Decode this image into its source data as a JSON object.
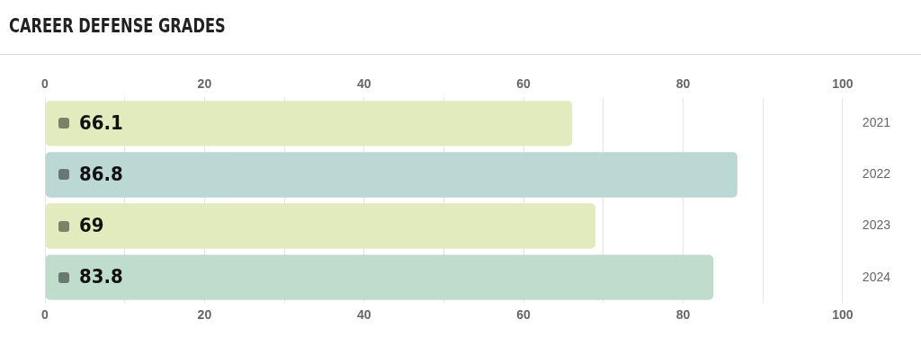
{
  "chart_data": {
    "type": "bar",
    "title": "CAREER DEFENSE GRADES",
    "orientation": "horizontal",
    "categories": [
      "2021",
      "2022",
      "2023",
      "2024"
    ],
    "values": [
      66.1,
      86.8,
      69,
      83.8
    ],
    "colors": [
      "#e2ebbd",
      "#bcd8d5",
      "#e2ebbd",
      "#bfdccc"
    ],
    "xlim": [
      0,
      100
    ],
    "xticks": [
      0,
      {
        "value": 10,
        "label": null
      },
      20,
      {
        "value": 30,
        "label": null
      },
      40,
      {
        "value": 50,
        "label": null
      },
      60,
      {
        "value": 70,
        "label": null
      },
      80,
      {
        "value": 90,
        "label": null
      },
      100
    ],
    "x2lim": [
      0,
      100
    ],
    "x2ticks": [
      0,
      {
        "value": 10,
        "label": null
      },
      20,
      {
        "value": 30,
        "label": null
      },
      40,
      {
        "value": 50,
        "label": null
      },
      60,
      {
        "value": 70,
        "label": null
      },
      80,
      {
        "value": 90,
        "label": null
      },
      100
    ],
    "grid": "x",
    "data_labels": true,
    "legend": false
  }
}
